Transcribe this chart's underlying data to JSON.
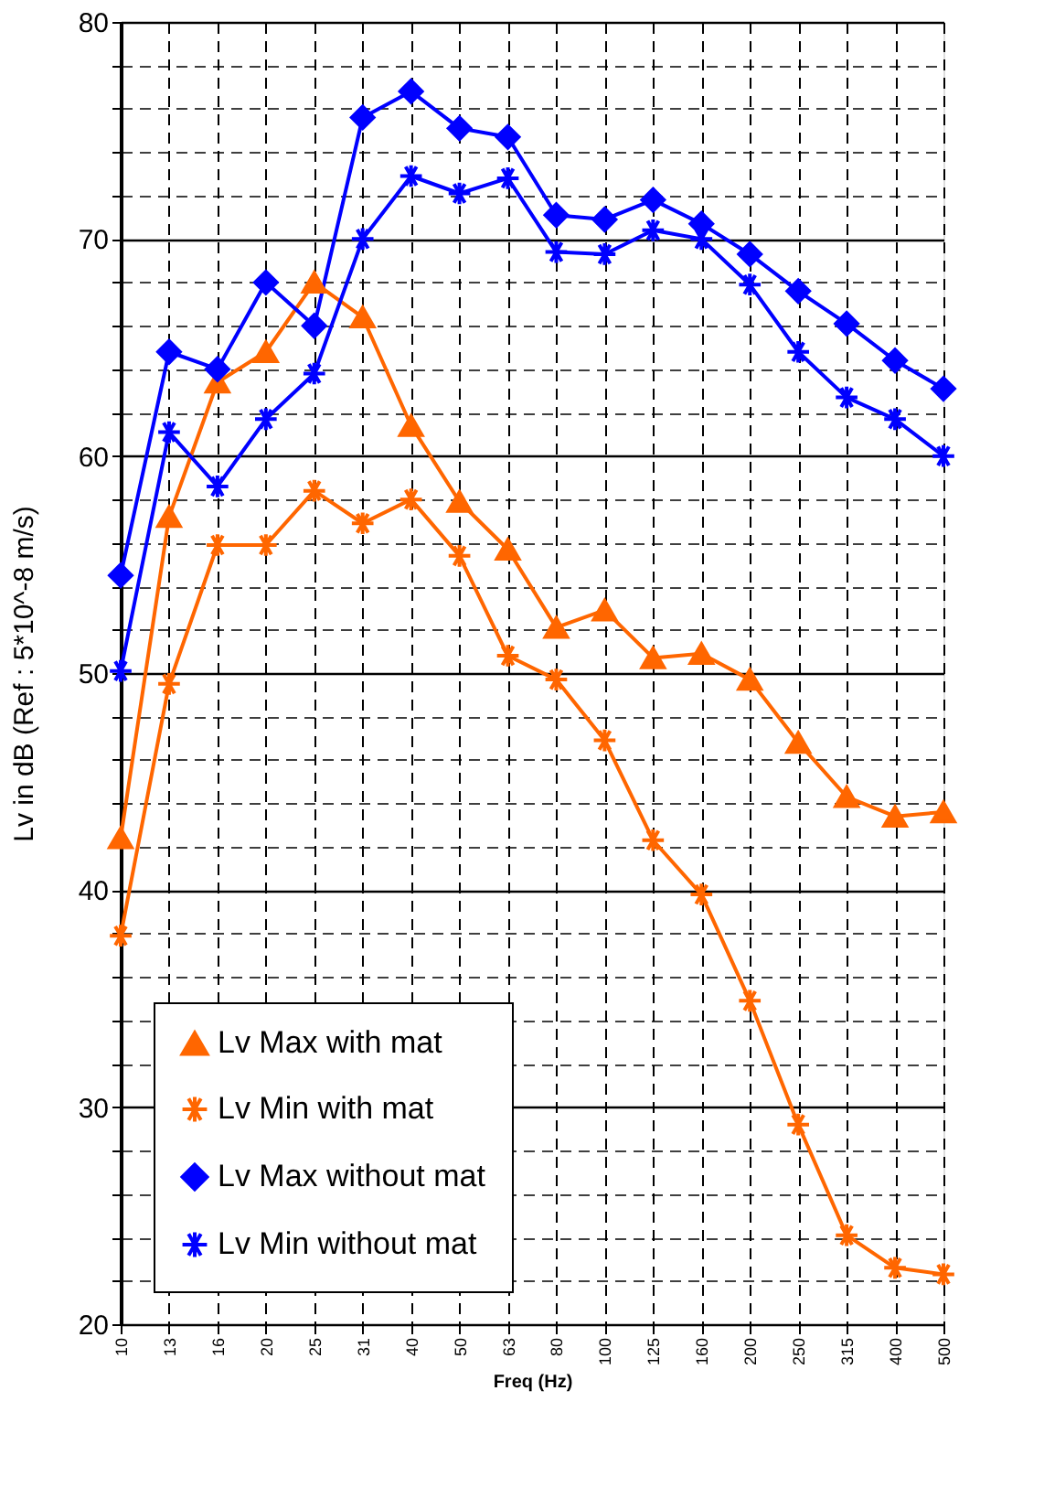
{
  "chart_data": {
    "type": "line",
    "xlabel": "Freq (Hz)",
    "ylabel": "Lv  in dB      (Ref : 5*10^-8 m/s)",
    "categories": [
      "10",
      "13",
      "16",
      "20",
      "25",
      "31",
      "40",
      "50",
      "63",
      "80",
      "100",
      "125",
      "160",
      "200",
      "250",
      "315",
      "400",
      "500"
    ],
    "series": [
      {
        "name": "Lv Max with mat",
        "color": "#ff6600",
        "marker": "triangle",
        "values": [
          42.4,
          57.2,
          63.4,
          64.8,
          68.0,
          66.4,
          61.4,
          57.9,
          55.7,
          52.1,
          52.9,
          50.7,
          50.9,
          49.7,
          46.8,
          44.3,
          43.4,
          43.6
        ]
      },
      {
        "name": "Lv Min with mat",
        "color": "#ff6600",
        "marker": "cross",
        "values": [
          37.9,
          49.5,
          55.9,
          55.9,
          58.4,
          56.9,
          58.0,
          55.4,
          50.8,
          49.7,
          46.9,
          42.3,
          39.8,
          34.9,
          29.2,
          24.1,
          22.6,
          22.3
        ]
      },
      {
        "name": "Lv Max without mat",
        "color": "#0000ff",
        "marker": "diamond",
        "values": [
          54.5,
          64.8,
          64.0,
          68.0,
          66.0,
          75.6,
          76.8,
          75.1,
          74.7,
          71.1,
          70.9,
          71.8,
          70.7,
          69.3,
          67.6,
          66.1,
          64.4,
          63.1
        ]
      },
      {
        "name": "Lv Min without mat",
        "color": "#0000ff",
        "marker": "cross",
        "values": [
          50.1,
          61.1,
          58.6,
          61.7,
          63.8,
          70.0,
          72.9,
          72.1,
          72.8,
          69.4,
          69.3,
          70.4,
          70.0,
          67.9,
          64.8,
          62.7,
          61.7,
          60.0
        ]
      }
    ],
    "ylim": [
      20,
      80
    ],
    "yticks": [
      20,
      {
        "value": 22,
        "label": null
      },
      {
        "value": 24,
        "label": null
      },
      {
        "value": 26,
        "label": null
      },
      {
        "value": 28,
        "label": null
      },
      30,
      {
        "value": 32,
        "label": null
      },
      {
        "value": 34,
        "label": null
      },
      {
        "value": 36,
        "label": null
      },
      {
        "value": 38,
        "label": null
      },
      40,
      {
        "value": 42,
        "label": null
      },
      {
        "value": 44,
        "label": null
      },
      {
        "value": 46,
        "label": null
      },
      {
        "value": 48,
        "label": null
      },
      50,
      {
        "value": 52,
        "label": null
      },
      {
        "value": 54,
        "label": null
      },
      {
        "value": 56,
        "label": null
      },
      {
        "value": 58,
        "label": null
      },
      60,
      {
        "value": 62,
        "label": null
      },
      {
        "value": 64,
        "label": null
      },
      {
        "value": 66,
        "label": null
      },
      {
        "value": 68,
        "label": null
      },
      70,
      {
        "value": 72,
        "label": null
      },
      {
        "value": 74,
        "label": null
      },
      {
        "value": 76,
        "label": null
      },
      {
        "value": 78,
        "label": null
      },
      80
    ],
    "grid": true,
    "legend": "bottom left",
    "line_style": "solid"
  }
}
